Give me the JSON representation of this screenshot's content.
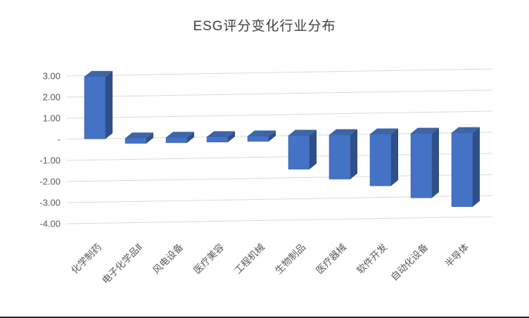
{
  "page": {
    "title": "ESG评分变化行业分布"
  },
  "chart_data": {
    "type": "bar",
    "style": "3d-clustered-column",
    "title": "ESG评分变化行业分布",
    "categories": [
      "化学制药",
      "电子化学品Ⅱ",
      "风电设备",
      "医疗美容",
      "工程机械",
      "生物制品",
      "医疗器械",
      "软件开发",
      "自动化设备",
      "半导体"
    ],
    "values": [
      2.95,
      -0.25,
      -0.25,
      -0.25,
      -0.25,
      -1.6,
      -2.1,
      -2.45,
      -3.05,
      -3.5
    ],
    "xlabel": "",
    "ylabel": "",
    "ylim": [
      -4,
      3
    ],
    "y_ticks": [
      3,
      2,
      1,
      0,
      -1,
      -2,
      -3,
      -4
    ],
    "y_tick_labels": [
      "3.00",
      "2.00",
      "1.00",
      "-",
      "-1.00",
      "-2.00",
      "-3.00",
      "-4.00"
    ],
    "grid": true,
    "legend": false,
    "category_label_rotation_deg": 45,
    "colors": {
      "bar_front": "#4472C4",
      "bar_top": "#3D65A8",
      "bar_side": "#2E4F87",
      "bar_outline": "#35589E",
      "gridline": "#D9D9D9",
      "axis_text": "#595959",
      "title_text": "#3F3F3F"
    }
  }
}
